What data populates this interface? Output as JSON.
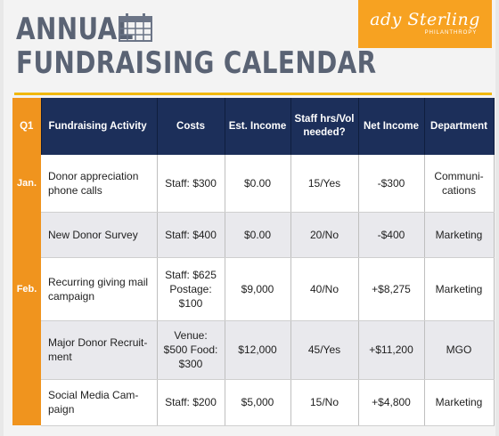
{
  "header": {
    "title_line1": "ANNUAL",
    "title_line2": "FUNDRAISING CALENDAR",
    "calendar_icon": "calendar-icon"
  },
  "logo": {
    "script": "ady Sterling",
    "tagline": "PHILANTHROPY"
  },
  "colors": {
    "title": "#5a6374",
    "header_bg": "#1c2f5a",
    "quarter_orange": "#f0941e",
    "accent_yellow": "#f1b80c",
    "logo_orange": "#f7a221"
  },
  "table": {
    "columns": [
      "Q1",
      "Fundraising Activity",
      "Costs",
      "Est. Income",
      "Staff hrs/Vol needed?",
      "Net Income",
      "Department"
    ],
    "rows": [
      {
        "month": "Jan.",
        "activity": "Donor appreciation phone calls",
        "costs": "Staff: $300",
        "est_income": "$0.00",
        "staff": "15/Yes",
        "net_income": "-$300",
        "department": "Communi- cations"
      },
      {
        "month": "",
        "activity": "New Donor Survey",
        "costs": "Staff: $400",
        "est_income": "$0.00",
        "staff": "20/No",
        "net_income": "-$400",
        "department": "Marketing"
      },
      {
        "month": "Feb.",
        "activity": "Recurring giving mail campaign",
        "costs": "Staff: $625 Postage: $100",
        "est_income": "$9,000",
        "staff": "40/No",
        "net_income": "+$8,275",
        "department": "Marketing"
      },
      {
        "month": "",
        "activity": "Major Donor Recruit- ment",
        "costs": "Venue: $500 Food: $300",
        "est_income": "$12,000",
        "staff": "45/Yes",
        "net_income": "+$11,200",
        "department": "MGO"
      },
      {
        "month": "",
        "activity": "Social Media Cam- paign",
        "costs": "Staff: $200",
        "est_income": "$5,000",
        "staff": "15/No",
        "net_income": "+$4,800",
        "department": "Marketing"
      }
    ]
  }
}
